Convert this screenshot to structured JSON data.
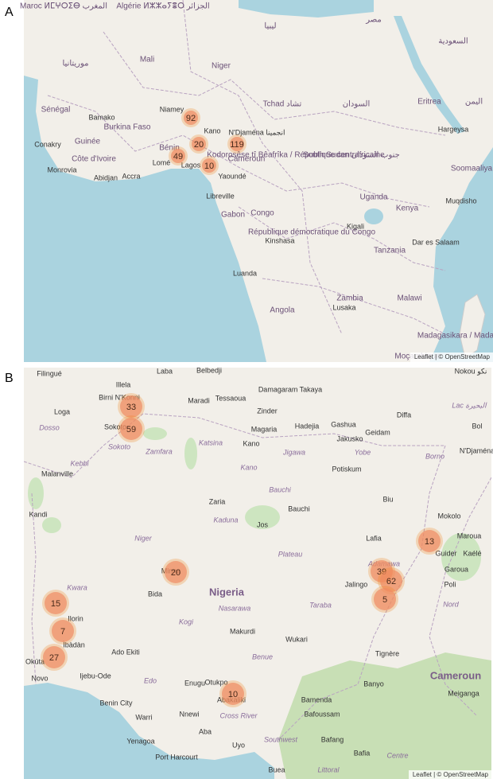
{
  "panels": [
    {
      "label": "A",
      "attribution": "Leaflet | © OpenStreetMap",
      "clusters": [
        92,
        20,
        119,
        49,
        10
      ],
      "places": [
        "Maroc ⵍⵎⵖⵔⵉⴱ المغرب",
        "Algérie ⵍⵣⵣⴰⵢⴻⵔ الجزائر",
        "ليبيا",
        "مصر",
        "السعودية",
        "موريتانيا",
        "Mali",
        "Niger",
        "Tchad تشاد",
        "السودان",
        "Sénégal",
        "Bamako",
        "Niamey",
        "Burkina Faso",
        "Kano",
        "N'Djaména انجمينا",
        "Conakry",
        "Guinée",
        "Côte d'Ivoire",
        "Monrovia",
        "Abidjan",
        "Accra",
        "Lomé",
        "Lagos",
        "Bénin",
        "Yaoundé",
        "Cameroun",
        "Kodorosêse tî Bêafrîka / République centrafricaine",
        "South Sudan جنوب السودان",
        "Eritrea",
        "اليمن",
        "Hargeysa",
        "Soomaaliya",
        "Libreville",
        "Gabon",
        "Congo",
        "Uganda",
        "Kenya",
        "Muqdisho",
        "Kigali",
        "Kinshasa",
        "République démocratique du Congo",
        "Tanzania",
        "Dar es Salaam",
        "Luanda",
        "Angola",
        "Zambia",
        "Lusaka",
        "Malawi",
        "Moçambique",
        "Madagasikara / Madagascar"
      ]
    },
    {
      "label": "B",
      "attribution": "Leaflet | © OpenStreetMap",
      "clusters": [
        33,
        59,
        13,
        20,
        39,
        62,
        5,
        15,
        7,
        27,
        10
      ],
      "places": [
        "Filingué",
        "Laba",
        "Belbedji",
        "Damagaram Takaya",
        "Nokou نكو",
        "Illela",
        "Birni N'Konni",
        "Maradi",
        "Tessaoua",
        "Zinder",
        "Diffa",
        "Loga",
        "Dosso",
        "Lac البحيرة",
        "Magaria",
        "Geidam",
        "Bol",
        "N'Djaména",
        "Sokoto",
        "Sokoto",
        "Hadejia",
        "Gashua",
        "Jakusko",
        "Katsina",
        "Zamfara",
        "Kebbi",
        "Malanville",
        "Kano",
        "Jigawa",
        "Yobe",
        "Borno",
        "Potiskum",
        "Kano",
        "Kandi",
        "Bauchi",
        "Bauchi",
        "Zaria",
        "Biu",
        "Mokolo",
        "Maroua",
        "Kaduna",
        "Jos",
        "Guider",
        "Kaélé",
        "Lafia",
        "Niger",
        "Plateau",
        "Adamawa",
        "Garoua",
        "Minna",
        "Bida",
        "Nigeria",
        "Kwara",
        "Jalingo",
        "Poli",
        "Nord",
        "Ilorin",
        "Nasarawa",
        "Taraba",
        "Ìbàdàn",
        "Ado Ekiti",
        "Makurdi",
        "Kogi",
        "Wukari",
        "Okúta",
        "Ijebu-Ode",
        "Otukpo",
        "Benue",
        "Tignère",
        "Cameroun",
        "Novo",
        "Edo",
        "Enugu",
        "Banyo",
        "Meiganga",
        "Benin City",
        "Abakaliki",
        "Bamenda",
        "Warri",
        "Nnewi",
        "Cross River",
        "Bafoussam",
        "Aba",
        "Yenagoa",
        "Southwest",
        "Bafang",
        "Port Harcourt",
        "Uyo",
        "Bafia",
        "Centre",
        "Buea",
        "Littoral"
      ]
    }
  ]
}
